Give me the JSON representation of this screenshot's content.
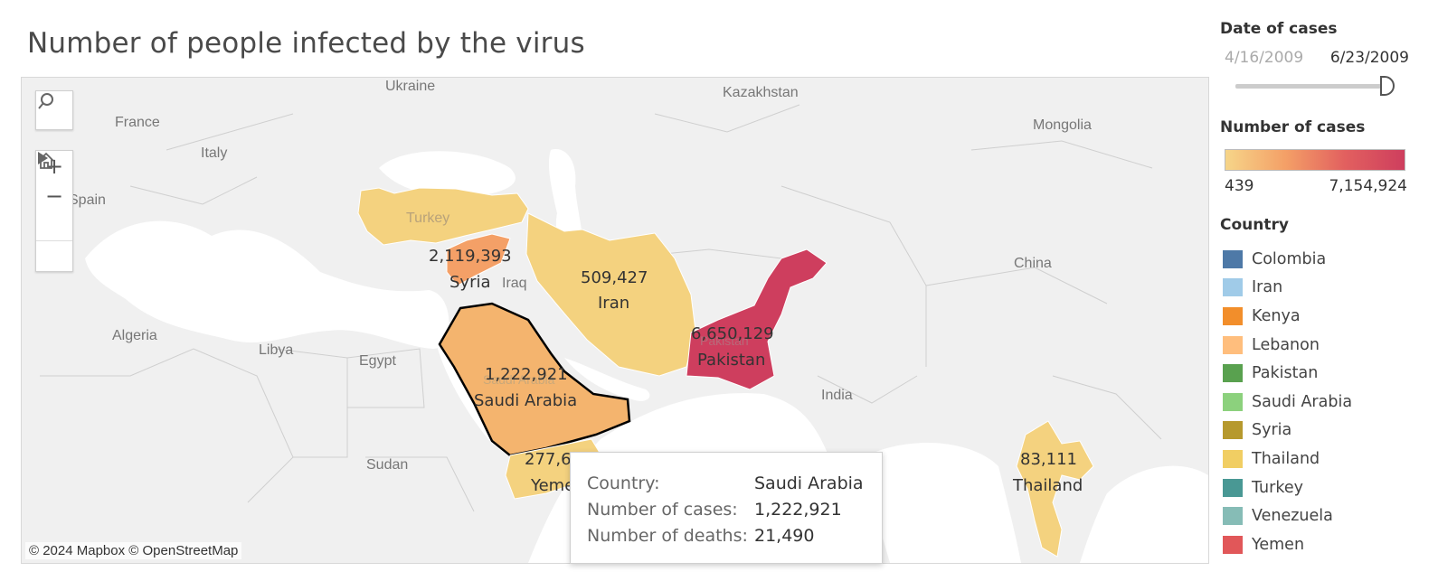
{
  "title": "Number of people infected by the virus",
  "controls": {
    "search_icon": "search-icon",
    "zoom_in": "+",
    "zoom_out": "−",
    "home_icon": "home-icon",
    "play_icon": "play-icon"
  },
  "attribution": "© 2024 Mapbox  © OpenStreetMap",
  "map_labels": {
    "france": "France",
    "ukraine": "Ukraine",
    "kazakhstan": "Kazakhstan",
    "mongolia": "Mongolia",
    "italy": "Italy",
    "spain": "Spain",
    "turkey": "Turkey",
    "iraq": "Iraq",
    "china": "China",
    "algeria": "Algeria",
    "libya": "Libya",
    "egypt": "Egypt",
    "india": "India",
    "sudan": "Sudan",
    "saudi_faded": "Saudi Arabia",
    "pakistan_faded": "Pakistan"
  },
  "regions": [
    {
      "key": "syria",
      "name": "Syria",
      "value": "2,119,393"
    },
    {
      "key": "iran",
      "name": "Iran",
      "value": "509,427"
    },
    {
      "key": "pakistan",
      "name": "Pakistan",
      "value": "6,650,129"
    },
    {
      "key": "saudi",
      "name": "Saudi Arabia",
      "value": "1,222,921"
    },
    {
      "key": "yemen",
      "name": "Yemen",
      "value": "277,6"
    },
    {
      "key": "thailand",
      "name": "Thailand",
      "value": "83,111"
    }
  ],
  "yemen_label_cut": "Yeme",
  "tooltip": {
    "country_label": "Country:",
    "country": "Saudi Arabia",
    "cases_label": "Number of cases:",
    "cases": "1,222,921",
    "deaths_label": "Number of deaths:",
    "deaths": "21,490"
  },
  "date_filter": {
    "title": "Date of cases",
    "start": "4/16/2009",
    "end": "6/23/2009"
  },
  "color_legend": {
    "title": "Number of cases",
    "min": "439",
    "max": "7,154,924"
  },
  "country_legend": {
    "title": "Country",
    "items": [
      {
        "name": "Colombia",
        "color": "#4e79a7"
      },
      {
        "name": "Iran",
        "color": "#a0cbe8"
      },
      {
        "name": "Kenya",
        "color": "#f28e2b"
      },
      {
        "name": "Lebanon",
        "color": "#ffbe7d"
      },
      {
        "name": "Pakistan",
        "color": "#59a14f"
      },
      {
        "name": "Saudi Arabia",
        "color": "#8cd17d"
      },
      {
        "name": "Syria",
        "color": "#b6992d"
      },
      {
        "name": "Thailand",
        "color": "#f1ce63"
      },
      {
        "name": "Turkey",
        "color": "#499894"
      },
      {
        "name": "Venezuela",
        "color": "#86bcb6"
      },
      {
        "name": "Yemen",
        "color": "#e15759"
      }
    ]
  }
}
